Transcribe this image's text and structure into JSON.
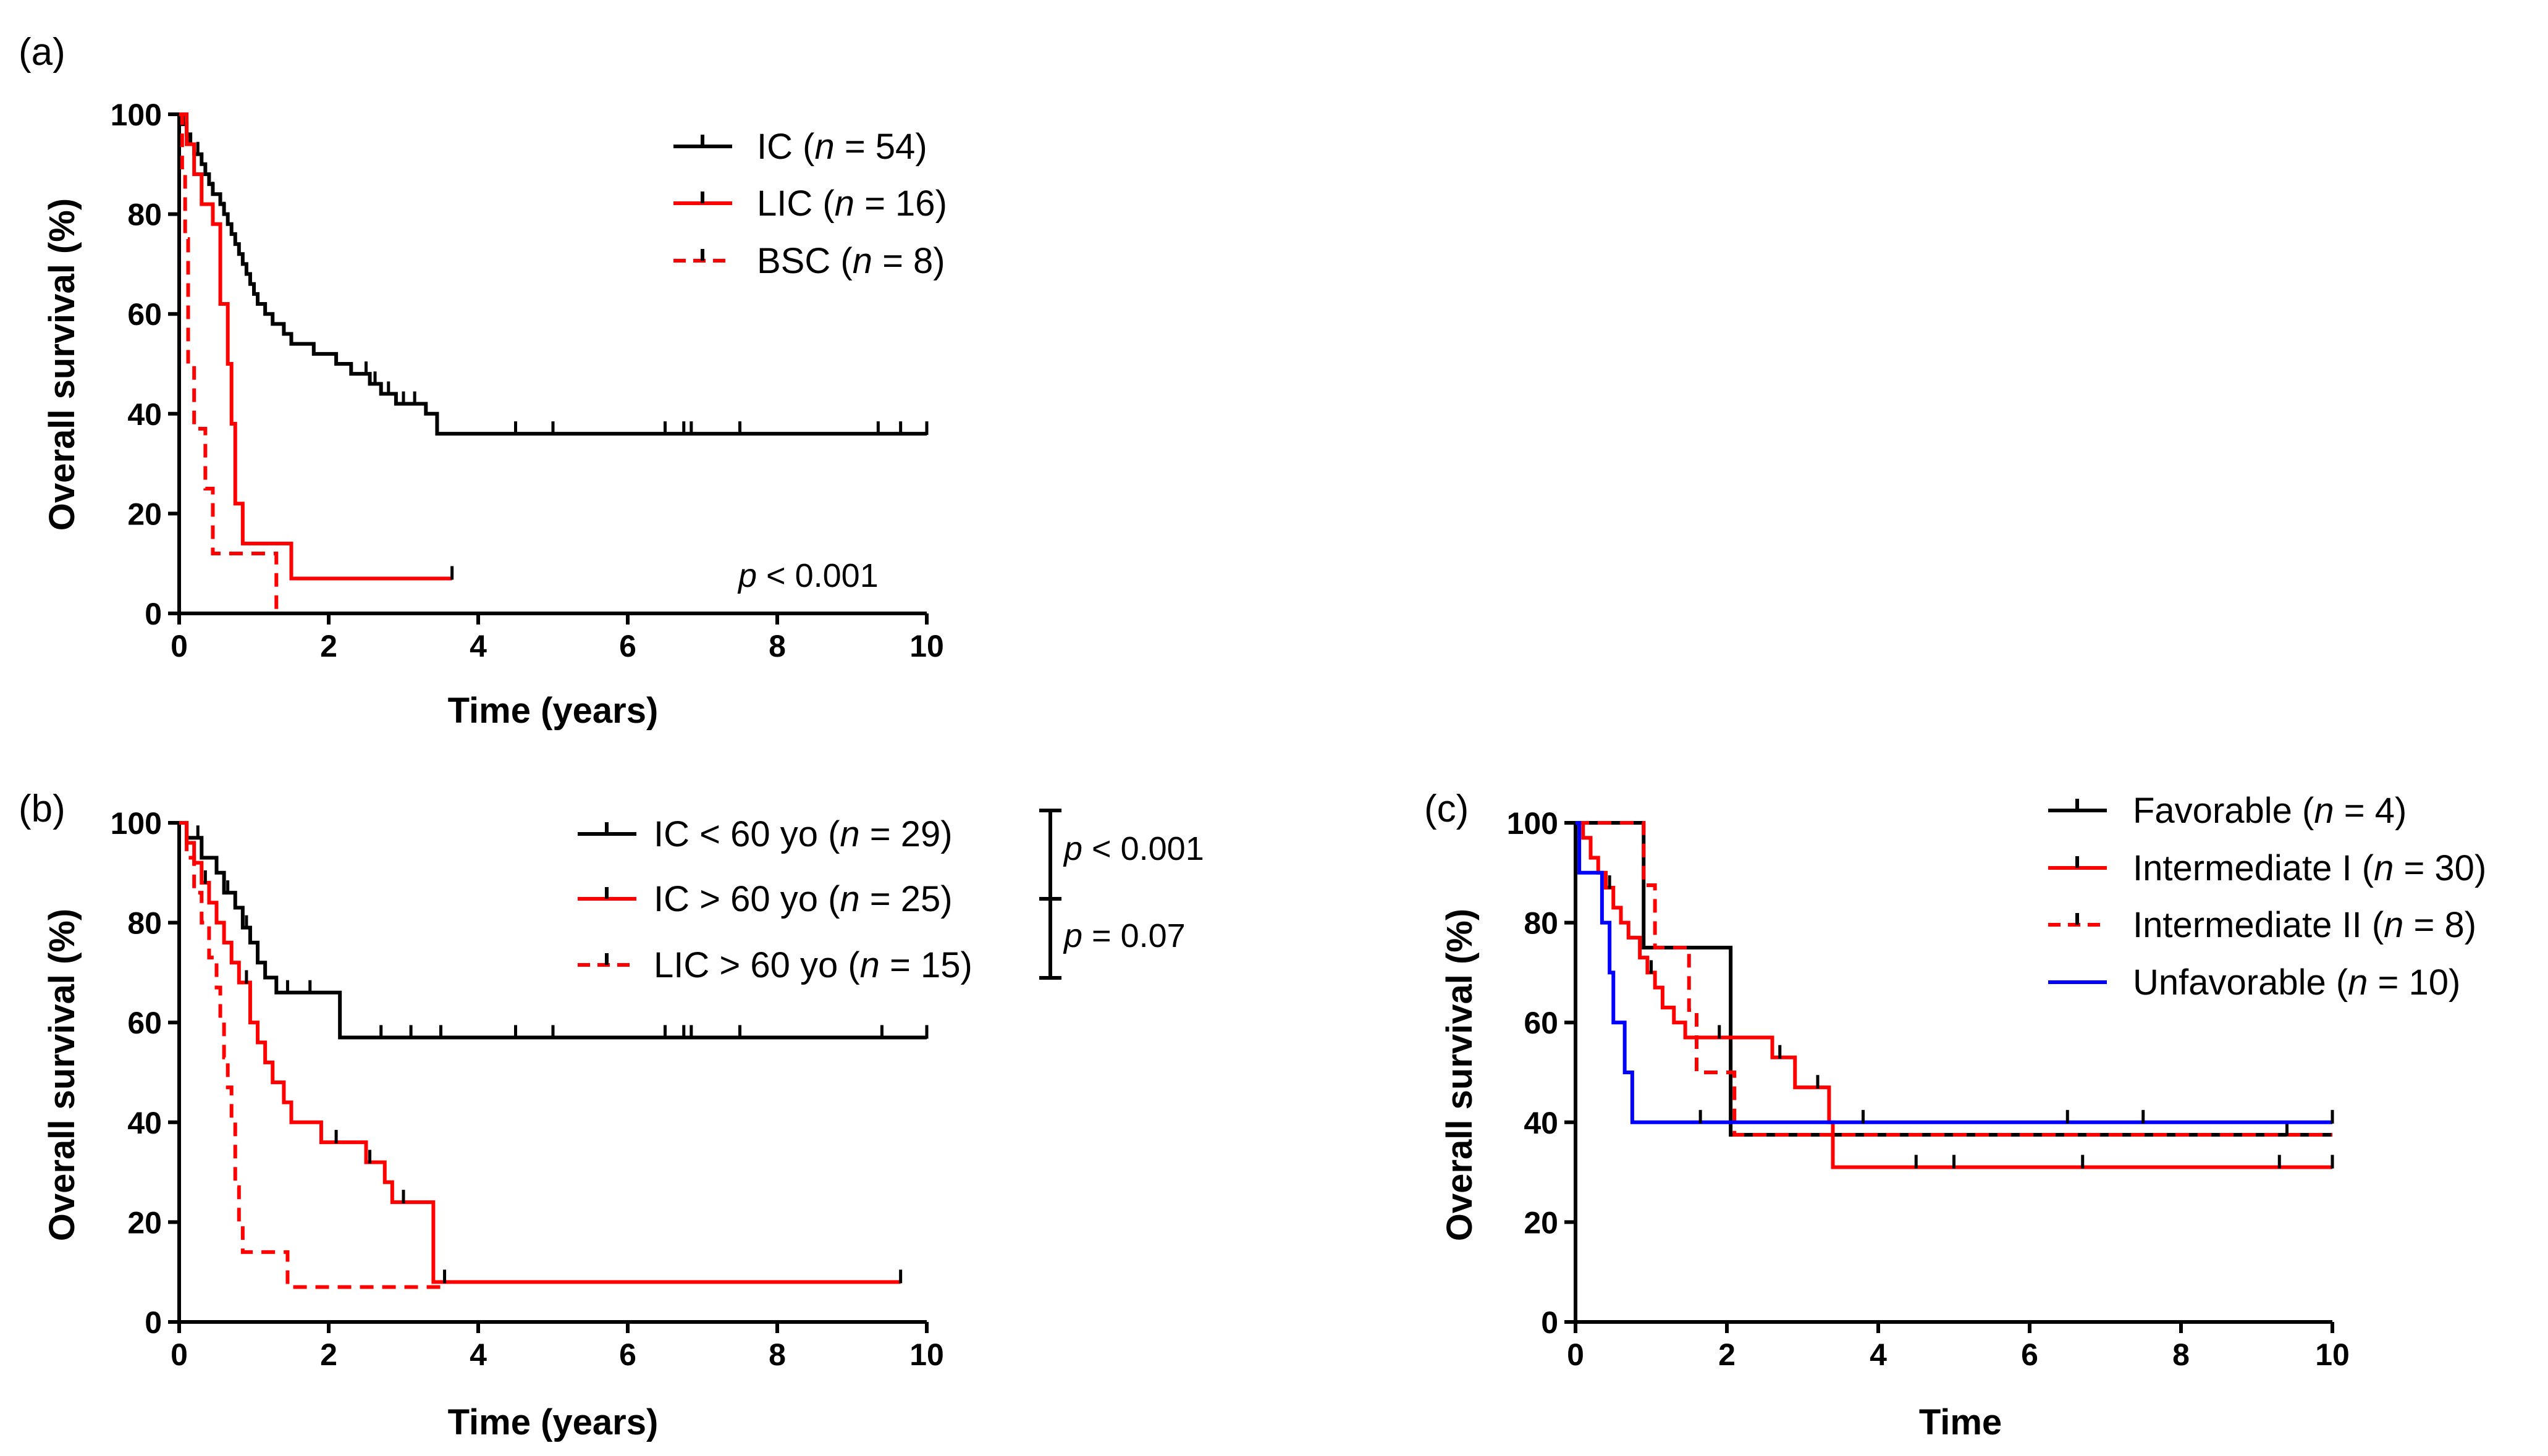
{
  "chart_data": [
    {
      "panel": "(a)",
      "type": "line",
      "subtype": "kaplan-meier",
      "xlabel": "Time (years)",
      "ylabel": "Overall survival (%)",
      "xlim": [
        0,
        10
      ],
      "ylim": [
        0,
        100
      ],
      "x_ticks": [
        "0",
        "2",
        "4",
        "6",
        "8",
        "10"
      ],
      "y_ticks": [
        "0",
        "20",
        "40",
        "60",
        "80",
        "100"
      ],
      "legend_position": "top-right",
      "annotations": [
        {
          "italic": "p",
          "rest": " < 0.001"
        }
      ],
      "series": [
        {
          "name_main": "IC (",
          "name_n": "n",
          "name_rest": " = 54)",
          "color": "#000000",
          "dashed": false,
          "steps": [
            [
              0,
              100
            ],
            [
              0.05,
              98
            ],
            [
              0.1,
              96
            ],
            [
              0.15,
              94
            ],
            [
              0.2,
              92
            ],
            [
              0.3,
              90
            ],
            [
              0.35,
              88
            ],
            [
              0.4,
              86
            ],
            [
              0.45,
              84
            ],
            [
              0.55,
              82
            ],
            [
              0.6,
              80
            ],
            [
              0.65,
              78
            ],
            [
              0.7,
              76
            ],
            [
              0.75,
              74
            ],
            [
              0.8,
              72
            ],
            [
              0.85,
              70
            ],
            [
              0.9,
              68
            ],
            [
              0.95,
              66
            ],
            [
              1.0,
              64
            ],
            [
              1.05,
              62
            ],
            [
              1.15,
              60
            ],
            [
              1.25,
              58
            ],
            [
              1.4,
              56
            ],
            [
              1.5,
              54
            ],
            [
              1.8,
              52
            ],
            [
              2.1,
              50
            ],
            [
              2.3,
              48
            ],
            [
              2.55,
              46
            ],
            [
              2.7,
              44
            ],
            [
              2.9,
              42
            ],
            [
              3.3,
              40
            ],
            [
              3.45,
              36
            ]
          ],
          "end": 10,
          "censor": [
            0.25,
            0.45,
            0.6,
            2.5,
            2.62,
            2.8,
            3.0,
            3.15,
            4.5,
            5.0,
            6.5,
            6.75,
            6.85,
            7.5,
            9.35,
            9.65,
            10.0
          ]
        },
        {
          "name_main": "LIC (",
          "name_n": "n",
          "name_rest": " = 16)",
          "color": "#ff0000",
          "dashed": false,
          "steps": [
            [
              0,
              100
            ],
            [
              0.1,
              94
            ],
            [
              0.2,
              88
            ],
            [
              0.3,
              82
            ],
            [
              0.45,
              78
            ],
            [
              0.55,
              62
            ],
            [
              0.65,
              50
            ],
            [
              0.7,
              38
            ],
            [
              0.75,
              22
            ],
            [
              0.85,
              14
            ],
            [
              1.5,
              7
            ]
          ],
          "end": 3.65,
          "censor": [
            3.65
          ]
        },
        {
          "name_main": "BSC (",
          "name_n": "n",
          "name_rest": " = 8)",
          "color": "#ff0000",
          "dashed": true,
          "steps": [
            [
              0,
              100
            ],
            [
              0.04,
              88
            ],
            [
              0.08,
              75
            ],
            [
              0.12,
              50
            ],
            [
              0.2,
              37
            ],
            [
              0.35,
              25
            ],
            [
              0.45,
              12
            ],
            [
              1.3,
              0
            ]
          ],
          "end": 1.3,
          "censor": []
        }
      ]
    },
    {
      "panel": "(b)",
      "type": "line",
      "subtype": "kaplan-meier",
      "xlabel": "Time (years)",
      "ylabel": "Overall survival (%)",
      "xlim": [
        0,
        10
      ],
      "ylim": [
        0,
        100
      ],
      "x_ticks": [
        "0",
        "2",
        "4",
        "6",
        "8",
        "10"
      ],
      "y_ticks": [
        "0",
        "20",
        "40",
        "60",
        "80",
        "100"
      ],
      "legend_position": "top-right",
      "comparisons": [
        {
          "italic": "p",
          "rest": " < 0.001"
        },
        {
          "italic": "p",
          "rest": " = 0.07"
        }
      ],
      "series": [
        {
          "name_main": "IC < 60 yo (",
          "name_n": "n",
          "name_rest": " = 29)",
          "color": "#000000",
          "dashed": false,
          "steps": [
            [
              0,
              100
            ],
            [
              0.1,
              97
            ],
            [
              0.3,
              93
            ],
            [
              0.5,
              90
            ],
            [
              0.6,
              86
            ],
            [
              0.75,
              83
            ],
            [
              0.85,
              79
            ],
            [
              0.95,
              76
            ],
            [
              1.05,
              72
            ],
            [
              1.15,
              69
            ],
            [
              1.3,
              66
            ],
            [
              2.15,
              57
            ]
          ],
          "end": 10,
          "censor": [
            0.25,
            0.65,
            0.9,
            1.45,
            1.75,
            2.7,
            3.1,
            3.5,
            4.5,
            5.0,
            6.5,
            6.75,
            6.85,
            7.5,
            9.4,
            10.0
          ]
        },
        {
          "name_main": "IC > 60 yo (",
          "name_n": "n",
          "name_rest": " = 25)",
          "color": "#ff0000",
          "dashed": false,
          "steps": [
            [
              0,
              100
            ],
            [
              0.1,
              96
            ],
            [
              0.2,
              92
            ],
            [
              0.3,
              88
            ],
            [
              0.4,
              84
            ],
            [
              0.5,
              80
            ],
            [
              0.6,
              76
            ],
            [
              0.7,
              72
            ],
            [
              0.8,
              68
            ],
            [
              0.95,
              60
            ],
            [
              1.05,
              56
            ],
            [
              1.15,
              52
            ],
            [
              1.25,
              48
            ],
            [
              1.4,
              44
            ],
            [
              1.5,
              40
            ],
            [
              1.9,
              36
            ],
            [
              2.5,
              32
            ],
            [
              2.75,
              28
            ],
            [
              2.85,
              24
            ],
            [
              3.4,
              8
            ]
          ],
          "end": 9.65,
          "censor": [
            0.35,
            0.9,
            2.1,
            2.55,
            3.0,
            3.55,
            9.65
          ]
        },
        {
          "name_main": "LIC > 60 yo (",
          "name_n": "n",
          "name_rest": " = 15)",
          "color": "#ff0000",
          "dashed": true,
          "steps": [
            [
              0,
              100
            ],
            [
              0.1,
              93
            ],
            [
              0.2,
              86
            ],
            [
              0.3,
              80
            ],
            [
              0.4,
              73
            ],
            [
              0.5,
              67
            ],
            [
              0.55,
              60
            ],
            [
              0.6,
              53
            ],
            [
              0.65,
              47
            ],
            [
              0.7,
              40
            ],
            [
              0.75,
              27
            ],
            [
              0.8,
              20
            ],
            [
              0.85,
              14
            ],
            [
              1.45,
              7
            ]
          ],
          "end": 3.5,
          "censor": []
        }
      ]
    },
    {
      "panel": "(c)",
      "type": "line",
      "subtype": "kaplan-meier",
      "xlabel": "Time",
      "ylabel": "Overall survival (%)",
      "xlim": [
        0,
        10
      ],
      "ylim": [
        0,
        100
      ],
      "x_ticks": [
        "0",
        "2",
        "4",
        "6",
        "8",
        "10"
      ],
      "y_ticks": [
        "0",
        "20",
        "40",
        "60",
        "80",
        "100"
      ],
      "legend_position": "top-right",
      "series": [
        {
          "name_main": "Favorable (",
          "name_n": "n",
          "name_rest": " = 4)",
          "color": "#000000",
          "dashed": false,
          "steps": [
            [
              0,
              100
            ],
            [
              0.9,
              75
            ],
            [
              2.05,
              37.5
            ]
          ],
          "end": 10,
          "censor": []
        },
        {
          "name_main": "Intermediate I (",
          "name_n": "n",
          "name_rest": " = 30)",
          "color": "#ff0000",
          "dashed": false,
          "steps": [
            [
              0,
              100
            ],
            [
              0.1,
              97
            ],
            [
              0.2,
              93
            ],
            [
              0.3,
              90
            ],
            [
              0.4,
              87
            ],
            [
              0.5,
              83
            ],
            [
              0.6,
              80
            ],
            [
              0.7,
              77
            ],
            [
              0.85,
              73
            ],
            [
              0.95,
              70
            ],
            [
              1.05,
              67
            ],
            [
              1.15,
              63
            ],
            [
              1.3,
              60
            ],
            [
              1.45,
              57
            ],
            [
              2.6,
              53
            ],
            [
              2.9,
              47
            ],
            [
              3.35,
              40
            ],
            [
              3.4,
              31
            ]
          ],
          "end": 10,
          "censor": [
            0.45,
            1.0,
            1.9,
            2.7,
            3.2,
            4.5,
            5.0,
            6.7,
            9.3,
            10.0
          ]
        },
        {
          "name_main": "Intermediate II (",
          "name_n": "n",
          "name_rest": " = 8)",
          "color": "#ff0000",
          "dashed": true,
          "steps": [
            [
              0,
              100
            ],
            [
              0.9,
              87.5
            ],
            [
              1.05,
              75
            ],
            [
              1.5,
              62.5
            ],
            [
              1.6,
              50
            ],
            [
              2.1,
              37.5
            ]
          ],
          "end": 10,
          "censor": [
            9.4
          ]
        },
        {
          "name_main": "Unfavorable (",
          "name_n": "n",
          "name_rest": " = 10)",
          "color": "#0000ff",
          "dashed": false,
          "steps": [
            [
              0,
              100
            ],
            [
              0.05,
              90
            ],
            [
              0.35,
              80
            ],
            [
              0.45,
              70
            ],
            [
              0.5,
              60
            ],
            [
              0.65,
              50
            ],
            [
              0.75,
              40
            ]
          ],
          "end": 10,
          "censor": [
            1.65,
            3.8,
            6.5,
            7.5,
            10.0
          ]
        }
      ]
    }
  ]
}
